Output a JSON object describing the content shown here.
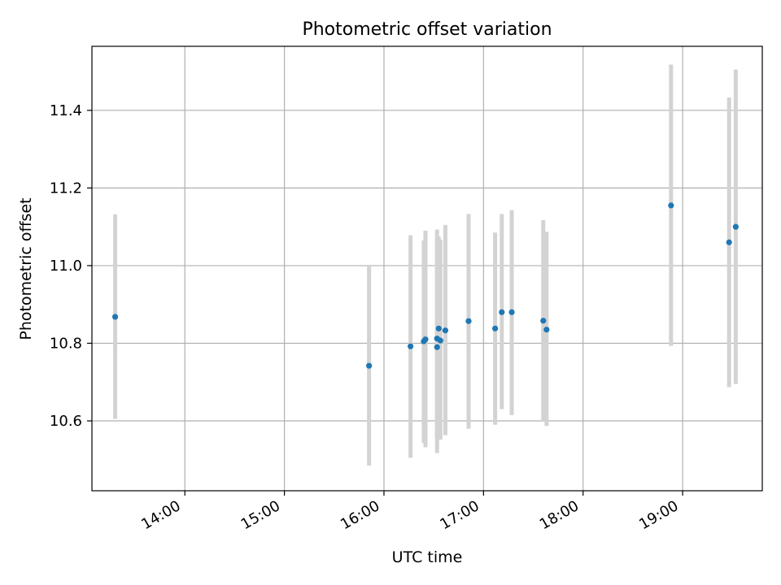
{
  "chart_data": {
    "type": "scatter",
    "title": "Photometric offset variation",
    "xlabel": "UTC time",
    "ylabel": "Photometric offset",
    "x_ticks": [
      "14:00",
      "15:00",
      "16:00",
      "17:00",
      "18:00",
      "19:00"
    ],
    "y_ticks": [
      "10.6",
      "10.8",
      "11.0",
      "11.2",
      "11.4"
    ],
    "xlim": [
      "13:04",
      "19:48"
    ],
    "ylim": [
      10.42,
      11.565
    ],
    "grid": true,
    "colors": {
      "point": "#1f77b4",
      "errorbar": "#d3d3d3",
      "grid": "#b0b0b0"
    },
    "points": [
      {
        "x": "13:18",
        "y": 10.868,
        "ylow": 10.605,
        "yhigh": 11.132
      },
      {
        "x": "15:51",
        "y": 10.742,
        "ylow": 10.485,
        "yhigh": 10.998
      },
      {
        "x": "16:16",
        "y": 10.792,
        "ylow": 10.505,
        "yhigh": 11.078
      },
      {
        "x": "16:24",
        "y": 10.805,
        "ylow": 10.543,
        "yhigh": 11.065
      },
      {
        "x": "16:25",
        "y": 10.81,
        "ylow": 10.532,
        "yhigh": 11.09
      },
      {
        "x": "16:32",
        "y": 10.812,
        "ylow": 10.555,
        "yhigh": 11.068
      },
      {
        "x": "16:32",
        "y": 10.79,
        "ylow": 10.517,
        "yhigh": 11.093
      },
      {
        "x": "16:33",
        "y": 10.838,
        "ylow": 10.575,
        "yhigh": 11.075
      },
      {
        "x": "16:34",
        "y": 10.807,
        "ylow": 10.552,
        "yhigh": 11.067
      },
      {
        "x": "16:37",
        "y": 10.833,
        "ylow": 10.563,
        "yhigh": 11.105
      },
      {
        "x": "16:51",
        "y": 10.857,
        "ylow": 10.58,
        "yhigh": 11.133
      },
      {
        "x": "17:07",
        "y": 10.838,
        "ylow": 10.59,
        "yhigh": 11.085
      },
      {
        "x": "17:11",
        "y": 10.88,
        "ylow": 10.63,
        "yhigh": 11.133
      },
      {
        "x": "17:17",
        "y": 10.88,
        "ylow": 10.615,
        "yhigh": 11.143
      },
      {
        "x": "17:36",
        "y": 10.858,
        "ylow": 10.6,
        "yhigh": 11.117
      },
      {
        "x": "17:38",
        "y": 10.835,
        "ylow": 10.587,
        "yhigh": 11.087
      },
      {
        "x": "18:53",
        "y": 11.155,
        "ylow": 10.793,
        "yhigh": 11.518
      },
      {
        "x": "19:28",
        "y": 11.06,
        "ylow": 10.687,
        "yhigh": 11.433
      },
      {
        "x": "19:32",
        "y": 11.1,
        "ylow": 10.695,
        "yhigh": 11.505
      }
    ]
  }
}
